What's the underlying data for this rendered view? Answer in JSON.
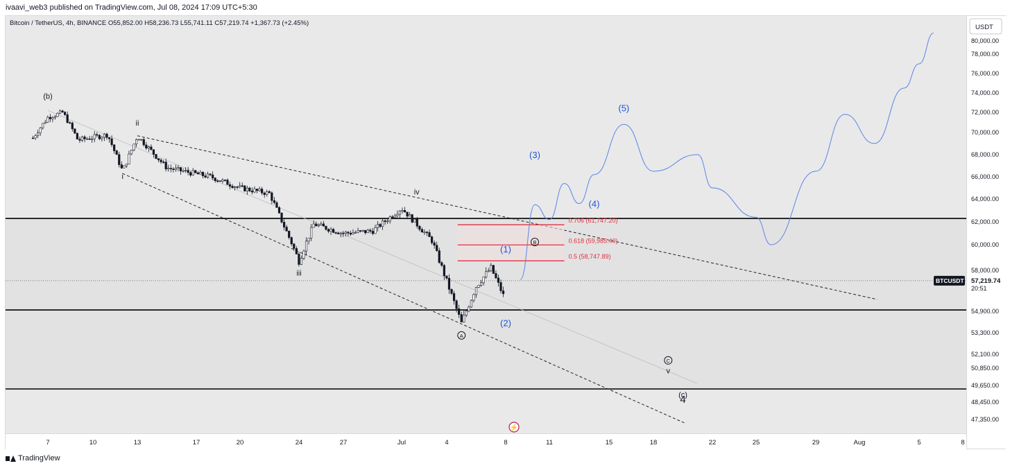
{
  "header": {
    "published": "ivaavi_web3 published on TradingView.com, Jul 08, 2024 17:09 UTC+5:30"
  },
  "symbol": {
    "name": "Bitcoin / TetherUS, 4h, BINANCE",
    "open": "O55,852.00",
    "high": "H58,236.73",
    "low": "L55,741.11",
    "close": "C57,219.74",
    "change": "+1,367.73 (+2.45%)"
  },
  "price_scale": {
    "currency": "USDT",
    "ticker_tag": "BTCUSDT",
    "last_price": "57,219.74",
    "countdown": "20:51",
    "tag_color": "#131722"
  },
  "footer": {
    "brand": "TradingView"
  },
  "colors": {
    "fib": "#e0303f",
    "projection": "#5b84e6",
    "wave_blue": "#1f54d6",
    "candles": "#131722"
  },
  "chart_data": {
    "type": "candlestick",
    "timeframe": "4h",
    "ylim": [
      46500,
      81500
    ],
    "x_ticks": [
      "7",
      "10",
      "13",
      "17",
      "20",
      "24",
      "27",
      "Jul",
      "4",
      "8",
      "11",
      "15",
      "18",
      "22",
      "25",
      "29",
      "Aug",
      "5",
      "8"
    ],
    "y_ticks": [
      "80,000.00",
      "78,000.00",
      "76,000.00",
      "74,000.00",
      "72,000.00",
      "70,000.00",
      "68,000.00",
      "66,000.00",
      "64,000.00",
      "62,000.00",
      "60,000.00",
      "58,000.00",
      "54,900.00",
      "53,300.00",
      "52,100.00",
      "50,850.00",
      "49,650.00",
      "48,450.00",
      "47,350.00"
    ],
    "y_tick_values": [
      80000,
      78000,
      76000,
      74000,
      72000,
      70000,
      68000,
      66000,
      64000,
      62000,
      60000,
      58000,
      54900,
      53300,
      52100,
      50850,
      49650,
      48450,
      47350
    ],
    "horizontal_levels": [
      62300,
      55000,
      49400
    ],
    "last_price": 57219.74,
    "fib_levels": [
      {
        "label": "0.706 (61,747.20)",
        "value": 61747.2
      },
      {
        "label": "0.618 (59,985.40)",
        "value": 59985.4
      },
      {
        "label": "0.5 (58,747.89)",
        "value": 58747.89
      }
    ],
    "wave_labels": [
      {
        "text": "(b)",
        "x": "Jun 7",
        "y": 73400,
        "color": "black"
      },
      {
        "text": "ii",
        "x": "Jun 13",
        "y": 70700,
        "color": "black"
      },
      {
        "text": "i",
        "x": "Jun 12",
        "y": 65800,
        "color": "black"
      },
      {
        "text": "iii",
        "x": "Jun 24",
        "y": 57600,
        "color": "black"
      },
      {
        "text": "iv",
        "x": "Jul 2",
        "y": 64400,
        "color": "black"
      },
      {
        "text": "A",
        "x": "Jul 5",
        "y": 53000,
        "color": "black",
        "circled": true
      },
      {
        "text": "B",
        "x": "Jul 10",
        "y": 60000,
        "color": "black",
        "circled": true
      },
      {
        "text": "C",
        "x": "Jul 19",
        "y": 51300,
        "color": "black",
        "circled": true
      },
      {
        "text": "v",
        "x": "Jul 19",
        "y": 50500,
        "color": "black"
      },
      {
        "text": "(c)",
        "x": "Jul 20",
        "y": 48800,
        "color": "black"
      },
      {
        "text": "4",
        "x": "Jul 20",
        "y": 48400,
        "color": "black"
      },
      {
        "text": "(1)",
        "x": "Jul 8",
        "y": 59400,
        "color": "blue"
      },
      {
        "text": "(2)",
        "x": "Jul 8",
        "y": 53800,
        "color": "blue"
      },
      {
        "text": "(3)",
        "x": "Jul 10",
        "y": 67700,
        "color": "blue"
      },
      {
        "text": "(4)",
        "x": "Jul 14",
        "y": 63300,
        "color": "blue"
      },
      {
        "text": "(5)",
        "x": "Jul 16",
        "y": 72100,
        "color": "blue"
      }
    ],
    "price_path_series": {
      "name": "",
      "points": [
        [
          "Jun 6",
          69500
        ],
        [
          "Jun 7",
          71500
        ],
        [
          "Jun 8",
          72000
        ],
        [
          "Jun 9",
          69300
        ],
        [
          "Jun 11",
          69800
        ],
        [
          "Jun 12",
          66500
        ],
        [
          "Jun 13",
          69700
        ],
        [
          "Jun 15",
          66800
        ],
        [
          "Jun 18",
          66000
        ],
        [
          "Jun 20",
          65000
        ],
        [
          "Jun 22",
          64500
        ],
        [
          "Jun 24",
          58700
        ],
        [
          "Jun 25",
          61800
        ],
        [
          "Jun 27",
          61000
        ],
        [
          "Jun 29",
          61200
        ],
        [
          "Jul 1",
          63200
        ],
        [
          "Jul 3",
          60400
        ],
        [
          "Jul 5",
          54000
        ],
        [
          "Jul 6",
          56800
        ],
        [
          "Jul 7",
          58200
        ],
        [
          "Jul 8",
          55700
        ],
        [
          "Jul 8",
          57219.74
        ]
      ]
    },
    "projection_series": {
      "name": "",
      "points": [
        [
          "Jul 9",
          57300
        ],
        [
          "Jul 10",
          63500
        ],
        [
          "Jul 11",
          62200
        ],
        [
          "Jul 12",
          65400
        ],
        [
          "Jul 13",
          63600
        ],
        [
          "Jul 14",
          66200
        ],
        [
          "Jul 16",
          70800
        ],
        [
          "Jul 18",
          66500
        ],
        [
          "Jul 21",
          68000
        ],
        [
          "Jul 22",
          65000
        ],
        [
          "Jul 25",
          62400
        ],
        [
          "Jul 26",
          60000
        ],
        [
          "Jul 29",
          66500
        ],
        [
          "Jul 31",
          71800
        ],
        [
          "Aug 2",
          69000
        ],
        [
          "Aug 4",
          74500
        ],
        [
          "Aug 5",
          77000
        ],
        [
          "Aug 6",
          81200
        ]
      ]
    }
  }
}
